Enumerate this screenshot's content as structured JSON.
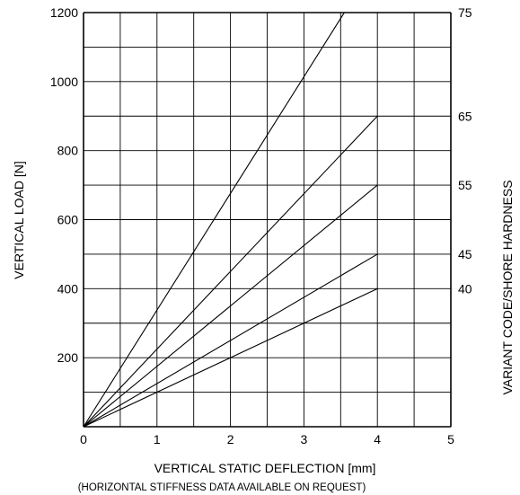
{
  "chart_data": {
    "type": "line",
    "title": "",
    "xlabel": "VERTICAL STATIC DEFLECTION [mm]",
    "xlabel_note": "(HORIZONTAL STIFFNESS DATA AVAILABLE ON REQUEST)",
    "ylabel": "VERTICAL LOAD [N]",
    "y2label": "VARIANT CODE/SHORE HARDNESS",
    "xlim": [
      0,
      5
    ],
    "ylim": [
      0,
      1200
    ],
    "grid": true,
    "legend": "none",
    "x_ticks": [
      "0",
      "1",
      "2",
      "3",
      "4",
      "5"
    ],
    "y_ticks": [
      "200",
      "400",
      "600",
      "800",
      "1000",
      "1200"
    ],
    "series": [
      {
        "name": "75",
        "x": [
          0,
          3.55
        ],
        "y": [
          0,
          1200
        ]
      },
      {
        "name": "65",
        "x": [
          0,
          4
        ],
        "y": [
          0,
          900
        ]
      },
      {
        "name": "55",
        "x": [
          0,
          4
        ],
        "y": [
          0,
          700
        ]
      },
      {
        "name": "45",
        "x": [
          0,
          4
        ],
        "y": [
          0,
          500
        ]
      },
      {
        "name": "40",
        "x": [
          0,
          4
        ],
        "y": [
          0,
          400
        ]
      }
    ],
    "right_labels": [
      {
        "text": "75",
        "y": 1200
      },
      {
        "text": "65",
        "y": 900
      },
      {
        "text": "55",
        "y": 700
      },
      {
        "text": "45",
        "y": 500
      },
      {
        "text": "40",
        "y": 400
      }
    ]
  }
}
